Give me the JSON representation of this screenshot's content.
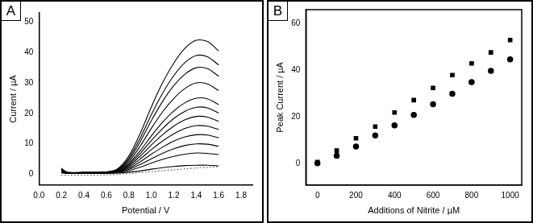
{
  "chart_data": [
    {
      "type": "line",
      "title": "A",
      "x_label": "Potential / V",
      "y_label": "Current / µA",
      "x": [
        0.2,
        0.25,
        0.4,
        0.6,
        0.7,
        0.8,
        0.9,
        1.0,
        1.1,
        1.2,
        1.3,
        1.4,
        1.5,
        1.6
      ],
      "series": [
        {
          "color": "#000000",
          "line_style": "solid",
          "values": [
            0.5,
            0.3,
            0.3,
            0.3,
            0.4,
            0.7,
            1.1,
            1.7,
            2.2,
            2.6,
            2.9,
            3.0,
            3.0,
            2.8
          ]
        },
        {
          "color": "#000000",
          "line_style": "solid",
          "values": [
            0.6,
            0.3,
            0.3,
            0.4,
            0.6,
            1.2,
            2.3,
            3.7,
            4.9,
            5.9,
            6.6,
            7.0,
            6.9,
            6.5
          ]
        },
        {
          "color": "#000000",
          "line_style": "solid",
          "values": [
            0.8,
            0.4,
            0.4,
            0.5,
            0.7,
            1.6,
            3.2,
            5.1,
            6.9,
            8.4,
            9.5,
            10,
            9.9,
            9.2
          ]
        },
        {
          "color": "#000000",
          "line_style": "solid",
          "values": [
            0.8,
            0.4,
            0.4,
            0.5,
            0.8,
            2.0,
            4.1,
            6.6,
            8.9,
            10.9,
            12.3,
            13,
            12.9,
            12.0
          ]
        },
        {
          "color": "#000000",
          "line_style": "solid",
          "values": [
            1.0,
            0.5,
            0.5,
            0.6,
            0.9,
            2.4,
            5.0,
            8.1,
            10.9,
            13.3,
            15.1,
            16,
            15.8,
            14.7
          ]
        },
        {
          "color": "#000000",
          "line_style": "solid",
          "values": [
            1.0,
            0.5,
            0.5,
            0.6,
            1.0,
            2.8,
            5.9,
            9.6,
            13.0,
            15.8,
            17.9,
            19,
            18.8,
            17.4
          ]
        },
        {
          "color": "#000000",
          "line_style": "solid",
          "values": [
            1.2,
            0.5,
            0.5,
            0.6,
            1.1,
            3.2,
            6.8,
            11.1,
            15.0,
            18.3,
            20.7,
            22,
            21.8,
            20.1
          ]
        },
        {
          "color": "#000000",
          "line_style": "solid",
          "values": [
            1.2,
            0.5,
            0.5,
            0.6,
            1.2,
            3.6,
            7.7,
            12.6,
            17.1,
            20.8,
            23.5,
            25,
            24.8,
            22.9
          ]
        },
        {
          "color": "#000000",
          "line_style": "solid",
          "values": [
            1.4,
            0.6,
            0.6,
            0.7,
            1.4,
            4.2,
            9.2,
            15.1,
            20.5,
            24.9,
            28.2,
            30,
            29.7,
            27.5
          ]
        },
        {
          "color": "#000000",
          "line_style": "solid",
          "values": [
            1.6,
            0.6,
            0.6,
            0.7,
            1.5,
            4.8,
            10.6,
            17.6,
            23.9,
            29.1,
            32.9,
            35,
            34.7,
            32.2
          ]
        },
        {
          "color": "#000000",
          "line_style": "solid",
          "values": [
            1.8,
            0.6,
            0.6,
            0.7,
            1.6,
            5.3,
            11.8,
            19.6,
            26.6,
            32.4,
            36.7,
            39,
            38.6,
            35.9
          ]
        },
        {
          "color": "#000000",
          "line_style": "solid",
          "values": [
            2.0,
            0.7,
            0.7,
            0.8,
            1.8,
            6.0,
            13.3,
            22.1,
            30.0,
            36.5,
            41.4,
            44,
            43.6,
            40.5
          ]
        },
        {
          "color": "#555555",
          "line_style": "dotted",
          "values": [
            -0.3,
            -0.3,
            -0.3,
            -0.2,
            0,
            0.3,
            0.6,
            0.9,
            1.2,
            1.5,
            1.8,
            2.1,
            2.3,
            2.5
          ]
        }
      ],
      "xlim": [
        0,
        1.9
      ],
      "xticks": [
        {
          "value": 0,
          "label": "0.0"
        },
        0.2,
        0.4,
        0.6,
        0.8,
        {
          "value": 1,
          "label": "1.0"
        },
        1.2,
        1.4,
        1.6,
        1.8
      ],
      "ylim": [
        -3.5,
        53
      ],
      "yticks": [
        0,
        10,
        20,
        30,
        40,
        50
      ],
      "grid": false
    },
    {
      "type": "scatter",
      "title": "B",
      "x_label": "Additions of Nitrite / µM",
      "y_label": "Peak Current / µA",
      "x": [
        0,
        100,
        200,
        300,
        400,
        500,
        600,
        700,
        800,
        900,
        1000
      ],
      "series": [
        {
          "color": "#000000",
          "marker": "square",
          "values": [
            0.8,
            5.7,
            11,
            16,
            22,
            27.3,
            32.5,
            38,
            43,
            47.7,
            53
          ]
        },
        {
          "color": "#000000",
          "marker": "circle",
          "values": [
            0.3,
            3.5,
            7.5,
            12.2,
            16.5,
            21,
            25.5,
            30,
            35,
            39.8,
            44.7
          ]
        }
      ],
      "xlim": [
        -60,
        1060
      ],
      "xticks": [
        0,
        200,
        400,
        600,
        800,
        1000
      ],
      "ylim": [
        -9,
        66
      ],
      "yticks": [
        0,
        20,
        40,
        60
      ],
      "grid": false
    }
  ]
}
